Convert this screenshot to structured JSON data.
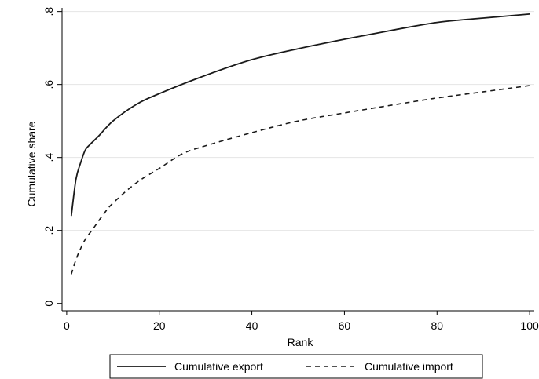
{
  "chart_data": {
    "type": "line",
    "title": "",
    "xlabel": "Rank",
    "ylabel": "Cumulative share",
    "xlim": [
      -1,
      101
    ],
    "ylim": [
      -0.02,
      0.81
    ],
    "x_ticks": [
      0,
      20,
      40,
      60,
      80,
      100
    ],
    "x_tick_labels": [
      "0",
      "20",
      "40",
      "60",
      "80",
      "100"
    ],
    "y_ticks": [
      0,
      0.2,
      0.4,
      0.6,
      0.8
    ],
    "y_tick_labels": [
      "0",
      ".2",
      ".4",
      ".6",
      ".8"
    ],
    "grid": "horizontal",
    "legend_position": "bottom",
    "series": [
      {
        "name": "Cumulative export",
        "style": "solid",
        "color": "#1a1a1a",
        "x": [
          1,
          2,
          3,
          4,
          5,
          7,
          10,
          15,
          20,
          30,
          40,
          50,
          60,
          70,
          80,
          90,
          100
        ],
        "y": [
          0.24,
          0.34,
          0.385,
          0.42,
          0.435,
          0.46,
          0.5,
          0.545,
          0.575,
          0.625,
          0.668,
          0.698,
          0.724,
          0.748,
          0.77,
          0.782,
          0.793
        ]
      },
      {
        "name": "Cumulative import",
        "style": "dashed",
        "color": "#1a1a1a",
        "x": [
          1,
          2,
          3,
          4,
          6,
          8,
          10,
          15,
          20,
          25,
          30,
          40,
          50,
          60,
          70,
          80,
          90,
          100
        ],
        "y": [
          0.08,
          0.12,
          0.15,
          0.175,
          0.21,
          0.245,
          0.275,
          0.33,
          0.37,
          0.41,
          0.432,
          0.468,
          0.5,
          0.522,
          0.543,
          0.563,
          0.58,
          0.597
        ]
      }
    ]
  }
}
